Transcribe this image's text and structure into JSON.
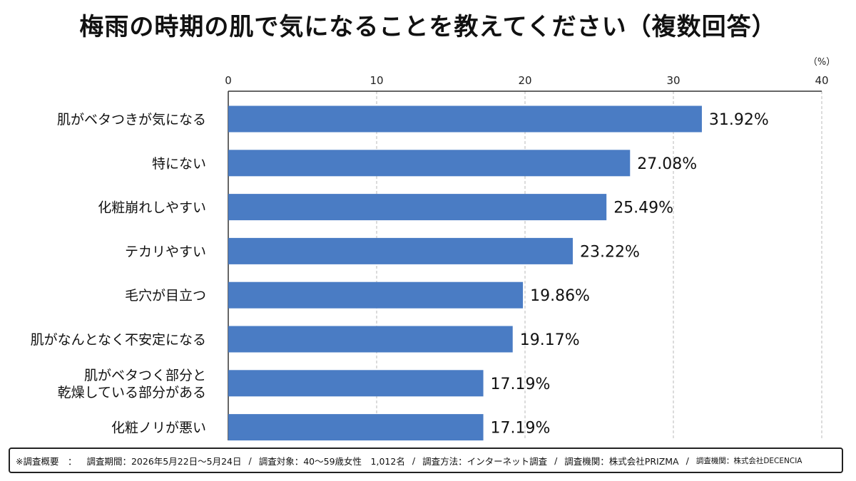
{
  "chart_data": {
    "type": "bar",
    "orientation": "horizontal",
    "title": "梅雨の時期の肌で気になることを教えてください（複数回答）",
    "unit_label": "（%）",
    "xlim": [
      0,
      40
    ],
    "x_ticks": [
      0,
      10,
      20,
      30,
      40
    ],
    "grid": true,
    "categories": [
      [
        "肌がベタつきが気になる"
      ],
      [
        "特にない"
      ],
      [
        "化粧崩れしやすい"
      ],
      [
        "テカリやすい"
      ],
      [
        "毛穴が目立つ"
      ],
      [
        "肌がなんとなく不安定になる"
      ],
      [
        "肌がベタつく部分と",
        "乾燥している部分がある"
      ],
      [
        "化粧ノリが悪い"
      ]
    ],
    "values": [
      31.92,
      27.08,
      25.49,
      23.22,
      19.86,
      19.17,
      17.19,
      17.19
    ],
    "value_labels": [
      "31.92%",
      "27.08%",
      "25.49%",
      "23.22%",
      "19.86%",
      "19.17%",
      "17.19%",
      "17.19%"
    ],
    "bar_color": "#4a7cc4",
    "grid_color": "#b8b8b8"
  },
  "footer": {
    "overview": "※調査概要　：",
    "period": "調査期間：2026年5月22日〜5月24日",
    "target": "調査対象：40〜59歳女性　1,012名",
    "method": "調査方法：インターネット調査",
    "org1": "調査機関：株式会社PRIZMA",
    "org2": "調査機関：株式会社DECENCIA",
    "separator": "/"
  }
}
